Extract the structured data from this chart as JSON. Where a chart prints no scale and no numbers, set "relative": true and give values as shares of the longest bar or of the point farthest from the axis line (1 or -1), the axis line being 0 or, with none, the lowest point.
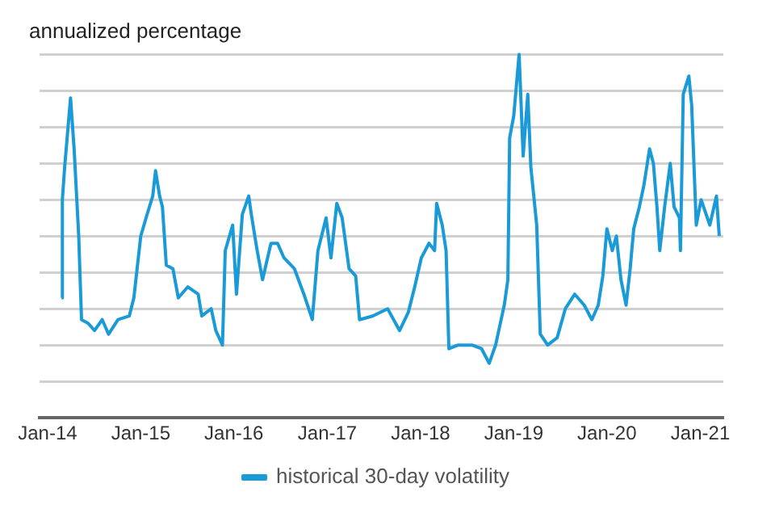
{
  "chart_data": {
    "type": "line",
    "ylabel": "annualized percentage",
    "relative": true,
    "grid": "y",
    "legend": "bottom",
    "marker": "none",
    "line_style": "solid",
    "xlim": [
      "2013-12-01",
      "2021-04-01"
    ],
    "xticks": [
      {
        "value": "2014-01",
        "label": "Jan-14"
      },
      {
        "value": "2015-01",
        "label": "Jan-15"
      },
      {
        "value": "2016-01",
        "label": "Jan-16"
      },
      {
        "value": "2017-01",
        "label": "Jan-17"
      },
      {
        "value": "2018-01",
        "label": "Jan-18"
      },
      {
        "value": "2019-01",
        "label": "Jan-19"
      },
      {
        "value": "2020-01",
        "label": "Jan-20"
      },
      {
        "value": "2021-01",
        "label": "Jan-21"
      }
    ],
    "series": [
      {
        "name": "historical 30-day volatility",
        "color": "#1a9ad6",
        "x": [
          "2014-02-25",
          "2014-02-28",
          "2014-03-09",
          "2014-04-01",
          "2014-04-15",
          "2014-05-03",
          "2014-05-14",
          "2014-06-09",
          "2014-07-04",
          "2014-08-03",
          "2014-08-28",
          "2014-10-04",
          "2014-11-17",
          "2014-12-05",
          "2015-01-01",
          "2015-01-26",
          "2015-02-17",
          "2015-02-28",
          "2015-03-16",
          "2015-03-27",
          "2015-04-11",
          "2015-05-07",
          "2015-05-28",
          "2015-07-04",
          "2015-08-14",
          "2015-08-28",
          "2015-10-04",
          "2015-10-22",
          "2015-11-17",
          "2015-11-28",
          "2015-12-27",
          "2016-01-11",
          "2016-02-03",
          "2016-02-28",
          "2016-03-09",
          "2016-04-01",
          "2016-04-22",
          "2016-05-25",
          "2016-06-20",
          "2016-07-15",
          "2016-08-25",
          "2016-10-01",
          "2016-11-03",
          "2016-11-25",
          "2016-12-27",
          "2017-01-15",
          "2017-02-07",
          "2017-02-28",
          "2017-03-27",
          "2017-04-22",
          "2017-05-07",
          "2017-06-27",
          "2017-08-25",
          "2017-10-11",
          "2017-11-14",
          "2017-12-09",
          "2018-01-04",
          "2018-02-03",
          "2018-02-25",
          "2018-03-05",
          "2018-03-27",
          "2018-04-11",
          "2018-04-22",
          "2018-05-28",
          "2018-07-22",
          "2018-08-28",
          "2018-09-27",
          "2018-10-22",
          "2018-11-25",
          "2018-12-09",
          "2018-12-16",
          "2019-01-01",
          "2019-01-22",
          "2019-02-07",
          "2019-02-25",
          "2019-03-09",
          "2019-04-01",
          "2019-04-15",
          "2019-05-14",
          "2019-06-20",
          "2019-07-22",
          "2019-08-28",
          "2019-10-04",
          "2019-11-03",
          "2019-11-28",
          "2019-12-16",
          "2020-01-01",
          "2020-01-22",
          "2020-02-07",
          "2020-02-25",
          "2020-03-16",
          "2020-04-01",
          "2020-04-15",
          "2020-05-07",
          "2020-05-25",
          "2020-06-16",
          "2020-07-01",
          "2020-07-15",
          "2020-07-26",
          "2020-08-14",
          "2020-09-05",
          "2020-09-20",
          "2020-10-11",
          "2020-10-15",
          "2020-10-26",
          "2020-11-17",
          "2020-11-28",
          "2020-12-16",
          "2021-01-04",
          "2021-02-07",
          "2021-03-05",
          "2021-03-16"
        ],
        "values": [
          0.33,
          0.6,
          0.69,
          0.88,
          0.74,
          0.5,
          0.27,
          0.26,
          0.24,
          0.27,
          0.23,
          0.27,
          0.28,
          0.33,
          0.5,
          0.56,
          0.61,
          0.68,
          0.61,
          0.58,
          0.42,
          0.41,
          0.33,
          0.36,
          0.34,
          0.28,
          0.3,
          0.24,
          0.2,
          0.46,
          0.53,
          0.34,
          0.56,
          0.61,
          0.56,
          0.46,
          0.38,
          0.48,
          0.48,
          0.44,
          0.41,
          0.34,
          0.27,
          0.46,
          0.55,
          0.44,
          0.59,
          0.55,
          0.41,
          0.39,
          0.27,
          0.28,
          0.3,
          0.24,
          0.29,
          0.36,
          0.44,
          0.48,
          0.46,
          0.59,
          0.53,
          0.46,
          0.19,
          0.2,
          0.2,
          0.19,
          0.15,
          0.2,
          0.31,
          0.38,
          0.77,
          0.83,
          1.0,
          0.72,
          0.89,
          0.69,
          0.53,
          0.23,
          0.2,
          0.22,
          0.3,
          0.34,
          0.31,
          0.27,
          0.31,
          0.39,
          0.52,
          0.46,
          0.5,
          0.38,
          0.31,
          0.41,
          0.52,
          0.58,
          0.64,
          0.74,
          0.7,
          0.58,
          0.46,
          0.58,
          0.7,
          0.58,
          0.55,
          0.46,
          0.89,
          0.94,
          0.86,
          0.53,
          0.6,
          0.53,
          0.61,
          0.5
        ]
      }
    ]
  }
}
